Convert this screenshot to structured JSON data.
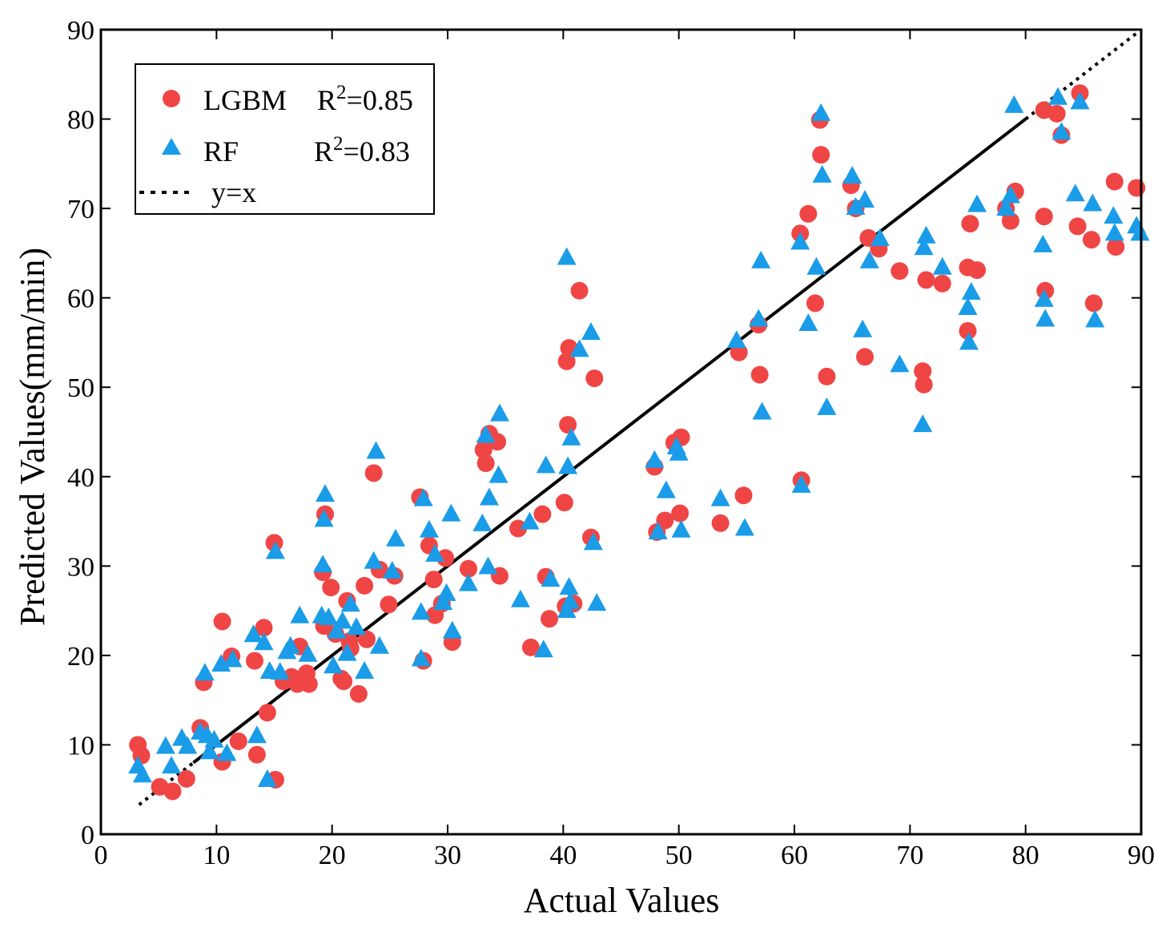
{
  "chart_data": {
    "type": "scatter",
    "title": "",
    "xlabel": "Actual Values",
    "ylabel": "Predicted Values(mm/min)",
    "xlim": [
      0,
      90
    ],
    "ylim": [
      0,
      90
    ],
    "xticks": [
      "0",
      "10",
      "20",
      "30",
      "40",
      "50",
      "60",
      "70",
      "80",
      "90"
    ],
    "yticks": [
      "0",
      "10",
      "20",
      "30",
      "40",
      "50",
      "60",
      "70",
      "80",
      "90"
    ],
    "legend_position": "top-left",
    "colors": {
      "lgbm": "#f04545",
      "rf": "#1a9ce8",
      "line": "#000000"
    },
    "legend": {
      "lgbm_name": "LGBM",
      "lgbm_r2_prefix": "R",
      "lgbm_r2_sup": "2",
      "lgbm_r2_value": "=0.85",
      "rf_name": "RF",
      "rf_r2_prefix": "R",
      "rf_r2_sup": "2",
      "rf_r2_value": "=0.83",
      "line_name": "y=x"
    },
    "reference_line": {
      "name": "y=x",
      "x": [
        3.3,
        89.8
      ]
    },
    "series": [
      {
        "name": "LGBM",
        "marker": "circle",
        "x": [
          3.2,
          3.5,
          5.1,
          6.2,
          7.4,
          8.6,
          8.9,
          10.5,
          10.5,
          11.3,
          11.9,
          13.3,
          13.5,
          14.1,
          14.4,
          15.0,
          15.1,
          15.8,
          16.5,
          17.0,
          17.2,
          17.8,
          18.0,
          19.2,
          19.3,
          19.4,
          19.9,
          20.3,
          20.8,
          21.0,
          21.3,
          21.5,
          21.6,
          22.3,
          22.8,
          23.0,
          23.6,
          24.1,
          24.9,
          25.4,
          27.6,
          27.9,
          28.4,
          28.8,
          28.9,
          29.5,
          29.8,
          30.4,
          31.8,
          33.1,
          33.3,
          33.6,
          34.3,
          34.5,
          36.1,
          37.2,
          38.2,
          38.5,
          38.8,
          40.1,
          40.2,
          40.3,
          40.4,
          40.5,
          40.9,
          41.4,
          42.4,
          42.7,
          47.9,
          48.1,
          48.8,
          49.6,
          50.1,
          50.2,
          53.6,
          55.2,
          55.6,
          56.9,
          57.0,
          60.5,
          60.6,
          61.2,
          61.8,
          62.2,
          62.3,
          62.8,
          64.9,
          65.3,
          66.1,
          66.4,
          67.3,
          69.1,
          71.1,
          71.2,
          71.4,
          72.8,
          75.0,
          75.0,
          75.2,
          75.8,
          78.3,
          78.7,
          79.1,
          81.6,
          81.6,
          81.7,
          82.7,
          83.1,
          84.5,
          84.7,
          85.7,
          85.9,
          87.7,
          87.8,
          89.6
        ],
        "y": [
          10.0,
          8.8,
          5.3,
          4.8,
          6.2,
          11.9,
          17.0,
          23.8,
          8.1,
          19.9,
          10.4,
          19.4,
          8.9,
          23.1,
          13.6,
          32.6,
          6.1,
          17.1,
          17.6,
          16.8,
          21.0,
          18.0,
          16.8,
          29.3,
          23.3,
          35.8,
          27.6,
          22.4,
          17.4,
          17.1,
          26.1,
          21.6,
          20.8,
          15.7,
          27.8,
          21.8,
          40.4,
          29.6,
          25.7,
          28.9,
          37.7,
          19.4,
          32.3,
          28.5,
          24.5,
          25.8,
          30.9,
          21.5,
          29.7,
          43.0,
          41.5,
          44.8,
          43.9,
          28.9,
          34.2,
          20.9,
          35.8,
          28.8,
          24.1,
          37.1,
          25.5,
          52.9,
          45.8,
          54.4,
          25.8,
          60.8,
          33.2,
          51.0,
          41.1,
          33.8,
          35.1,
          43.8,
          35.9,
          44.4,
          34.8,
          53.9,
          37.9,
          57.0,
          51.4,
          67.2,
          39.6,
          69.4,
          59.4,
          79.9,
          76.0,
          51.2,
          72.6,
          70.0,
          53.4,
          66.7,
          65.5,
          63.0,
          51.8,
          50.3,
          62.0,
          61.6,
          56.3,
          63.4,
          68.3,
          63.1,
          70.0,
          68.6,
          71.9,
          81.0,
          69.1,
          60.8,
          80.6,
          78.2,
          68.0,
          82.9,
          66.5,
          59.4,
          73.0,
          65.7,
          72.3
        ]
      },
      {
        "name": "RF",
        "marker": "triangle",
        "x": [
          3.2,
          3.6,
          5.6,
          6.1,
          7.0,
          7.5,
          8.6,
          9.0,
          9.2,
          9.4,
          9.8,
          10.4,
          10.9,
          11.4,
          13.2,
          13.5,
          14.1,
          14.4,
          14.6,
          15.1,
          15.5,
          16.1,
          16.4,
          17.2,
          17.9,
          19.1,
          19.2,
          19.3,
          19.4,
          19.7,
          20.1,
          20.4,
          20.9,
          21.3,
          21.6,
          22.1,
          22.8,
          23.6,
          23.8,
          24.1,
          25.2,
          25.5,
          27.7,
          27.7,
          27.9,
          28.4,
          28.9,
          29.6,
          29.9,
          30.3,
          30.4,
          31.8,
          33.0,
          33.3,
          33.5,
          33.6,
          34.4,
          34.5,
          36.3,
          37.1,
          38.3,
          38.5,
          38.9,
          40.3,
          40.3,
          40.4,
          40.5,
          40.6,
          40.7,
          41.4,
          42.4,
          42.6,
          42.9,
          47.9,
          48.2,
          48.9,
          49.8,
          50.0,
          50.2,
          53.6,
          55.0,
          55.7,
          56.9,
          57.1,
          57.2,
          60.5,
          60.6,
          61.2,
          61.9,
          62.3,
          62.4,
          62.8,
          65.0,
          65.3,
          65.9,
          66.1,
          66.5,
          67.4,
          69.1,
          71.1,
          71.2,
          71.4,
          72.8,
          75.0,
          75.1,
          75.3,
          75.8,
          78.3,
          78.7,
          79.0,
          81.5,
          81.6,
          81.7,
          82.8,
          83.1,
          84.3,
          84.7,
          85.8,
          86.0,
          87.6,
          87.7,
          89.6,
          89.9
        ],
        "y": [
          7.6,
          6.6,
          9.8,
          7.6,
          10.7,
          9.8,
          11.4,
          18.0,
          11.0,
          9.2,
          10.5,
          19.0,
          9.0,
          19.5,
          22.3,
          11.0,
          21.4,
          6.1,
          18.2,
          31.6,
          18.1,
          20.4,
          21.0,
          24.4,
          20.1,
          24.4,
          30.1,
          35.2,
          38.0,
          24.2,
          18.8,
          22.7,
          23.8,
          20.2,
          25.7,
          23.1,
          18.2,
          30.5,
          42.8,
          21.0,
          29.4,
          33.0,
          24.8,
          19.6,
          37.5,
          34.0,
          31.3,
          25.9,
          26.9,
          35.8,
          22.7,
          28.0,
          34.7,
          44.6,
          29.9,
          37.6,
          40.1,
          47.0,
          26.2,
          34.9,
          20.6,
          41.2,
          28.5,
          64.5,
          25.0,
          41.1,
          27.6,
          26.0,
          44.3,
          54.2,
          56.1,
          32.6,
          25.8,
          41.8,
          33.8,
          38.4,
          43.3,
          42.6,
          34.0,
          37.5,
          55.2,
          34.2,
          57.6,
          64.1,
          47.2,
          66.2,
          39.0,
          57.1,
          63.4,
          80.6,
          73.7,
          47.7,
          73.6,
          70.1,
          56.4,
          70.9,
          64.1,
          66.6,
          52.5,
          45.8,
          65.6,
          66.9,
          63.4,
          58.9,
          55.0,
          60.6,
          70.4,
          70.0,
          71.4,
          81.5,
          65.9,
          59.8,
          57.6,
          82.4,
          78.5,
          71.6,
          81.9,
          70.5,
          57.5,
          69.1,
          67.2,
          68.0,
          67.2
        ]
      }
    ]
  }
}
